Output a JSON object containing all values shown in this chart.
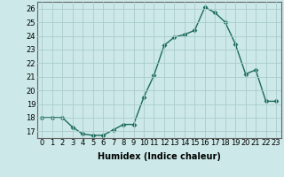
{
  "x": [
    0,
    1,
    2,
    3,
    4,
    5,
    6,
    7,
    8,
    9,
    10,
    11,
    12,
    13,
    14,
    15,
    16,
    17,
    18,
    19,
    20,
    21,
    22,
    23
  ],
  "y": [
    18.0,
    18.0,
    18.0,
    17.3,
    16.8,
    16.7,
    16.7,
    17.1,
    17.5,
    17.5,
    19.5,
    21.1,
    23.3,
    23.9,
    24.1,
    24.4,
    26.1,
    25.7,
    25.0,
    23.4,
    21.2,
    21.5,
    19.2,
    19.2
  ],
  "line_color": "#1a6b5a",
  "marker": "D",
  "marker_size": 2.5,
  "bg_color": "#cce8e8",
  "grid_color": "#aacccc",
  "xlabel": "Humidex (Indice chaleur)",
  "xlim": [
    -0.5,
    23.5
  ],
  "ylim": [
    16.5,
    26.5
  ],
  "yticks": [
    17,
    18,
    19,
    20,
    21,
    22,
    23,
    24,
    25,
    26
  ],
  "xticks": [
    0,
    1,
    2,
    3,
    4,
    5,
    6,
    7,
    8,
    9,
    10,
    11,
    12,
    13,
    14,
    15,
    16,
    17,
    18,
    19,
    20,
    21,
    22,
    23
  ],
  "xlabel_fontsize": 7.0,
  "tick_fontsize": 6.0,
  "line_width": 1.0
}
